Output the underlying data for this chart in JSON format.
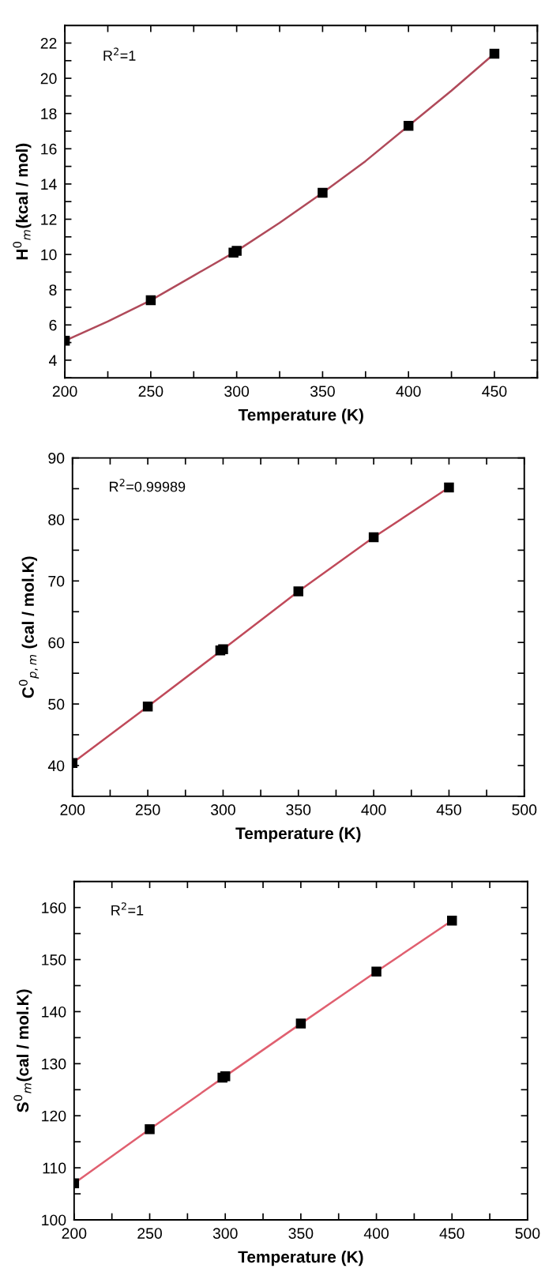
{
  "chart_data": [
    {
      "type": "scatter",
      "xlabel": "Temperature (K)",
      "ylabel": "H$^{0}$$_{m}$(kcal / mol)",
      "annotations": [
        "R$^{2}$=1"
      ],
      "xlim": [
        200,
        475
      ],
      "xticks": [
        200,
        {
          "value": 225,
          "label": null
        },
        250,
        {
          "value": 275,
          "label": null
        },
        300,
        {
          "value": 325,
          "label": null
        },
        350,
        {
          "value": 375,
          "label": null
        },
        400,
        {
          "value": 425,
          "label": null
        },
        450,
        {
          "value": 475,
          "label": null
        }
      ],
      "ylim": [
        3,
        23
      ],
      "yticks": [
        {
          "value": 3,
          "label": null
        },
        4,
        {
          "value": 5,
          "label": null
        },
        6,
        {
          "value": 7,
          "label": null
        },
        8,
        {
          "value": 9,
          "label": null
        },
        10,
        {
          "value": 11,
          "label": null
        },
        12,
        {
          "value": 13,
          "label": null
        },
        14,
        {
          "value": 15,
          "label": null
        },
        16,
        {
          "value": 17,
          "label": null
        },
        18,
        {
          "value": 19,
          "label": null
        },
        20,
        {
          "value": 21,
          "label": null
        },
        22
      ],
      "grid": false,
      "legend": false,
      "series": [
        {
          "type": "line",
          "color": "#b04a5a",
          "x": [
            200,
            225,
            250,
            275,
            300,
            325,
            350,
            375,
            400,
            425,
            450
          ],
          "values": [
            5.1,
            6.2,
            7.4,
            8.8,
            10.2,
            11.8,
            13.5,
            15.3,
            17.3,
            19.3,
            21.4
          ]
        },
        {
          "marker": "square",
          "color": "#000000",
          "x": [
            200,
            250,
            298.15,
            300,
            350,
            400,
            450
          ],
          "values": [
            5.1,
            7.4,
            10.1,
            10.2,
            13.5,
            17.3,
            21.4
          ]
        }
      ]
    },
    {
      "type": "scatter",
      "xlabel": "Temperature (K)",
      "ylabel": "C$^{0}$$_{p,m}$ (cal / mol.K)",
      "annotations": [
        "R$^{2}$=0.99989"
      ],
      "xlim": [
        200,
        500
      ],
      "xticks": [
        200,
        {
          "value": 225,
          "label": null
        },
        250,
        {
          "value": 275,
          "label": null
        },
        300,
        {
          "value": 325,
          "label": null
        },
        350,
        {
          "value": 375,
          "label": null
        },
        400,
        {
          "value": 425,
          "label": null
        },
        450,
        {
          "value": 475,
          "label": null
        },
        500
      ],
      "ylim": [
        35,
        90
      ],
      "yticks": [
        {
          "value": 35,
          "label": null
        },
        40,
        {
          "value": 45,
          "label": null
        },
        50,
        {
          "value": 55,
          "label": null
        },
        60,
        {
          "value": 65,
          "label": null
        },
        70,
        {
          "value": 75,
          "label": null
        },
        80,
        {
          "value": 85,
          "label": null
        },
        90
      ],
      "grid": false,
      "legend": false,
      "series": [
        {
          "type": "line",
          "color": "#c04a5a",
          "x": [
            200,
            250,
            300,
            350,
            400,
            450
          ],
          "values": [
            40.4,
            49.6,
            58.9,
            68.3,
            77.1,
            85.2
          ]
        },
        {
          "marker": "square",
          "color": "#000000",
          "x": [
            200,
            250,
            298.15,
            300,
            350,
            400,
            450
          ],
          "values": [
            40.4,
            49.6,
            58.7,
            58.9,
            68.3,
            77.1,
            85.2
          ]
        }
      ]
    },
    {
      "type": "scatter",
      "xlabel": "Temperature (K)",
      "ylabel": "S$^{0}$$_{m}$(cal / mol.K)",
      "annotations": [
        "R$^{2}$=1"
      ],
      "xlim": [
        200,
        500
      ],
      "xticks": [
        200,
        {
          "value": 225,
          "label": null
        },
        250,
        {
          "value": 275,
          "label": null
        },
        300,
        {
          "value": 325,
          "label": null
        },
        350,
        {
          "value": 375,
          "label": null
        },
        400,
        {
          "value": 425,
          "label": null
        },
        450,
        {
          "value": 475,
          "label": null
        },
        500
      ],
      "ylim": [
        100,
        165
      ],
      "yticks": [
        100,
        {
          "value": 105,
          "label": null
        },
        110,
        {
          "value": 115,
          "label": null
        },
        120,
        {
          "value": 125,
          "label": null
        },
        130,
        {
          "value": 135,
          "label": null
        },
        140,
        {
          "value": 145,
          "label": null
        },
        150,
        {
          "value": 155,
          "label": null
        },
        160,
        {
          "value": 165,
          "label": null
        }
      ],
      "grid": false,
      "legend": false,
      "series": [
        {
          "type": "line",
          "color": "#e06070",
          "x": [
            200,
            250,
            300,
            350,
            400,
            450
          ],
          "values": [
            107.0,
            117.4,
            127.6,
            137.7,
            147.7,
            157.5
          ]
        },
        {
          "marker": "square",
          "color": "#000000",
          "x": [
            200,
            250,
            298.15,
            300,
            350,
            400,
            450
          ],
          "values": [
            107.0,
            117.4,
            127.3,
            127.6,
            137.7,
            147.7,
            157.5
          ]
        }
      ]
    }
  ]
}
